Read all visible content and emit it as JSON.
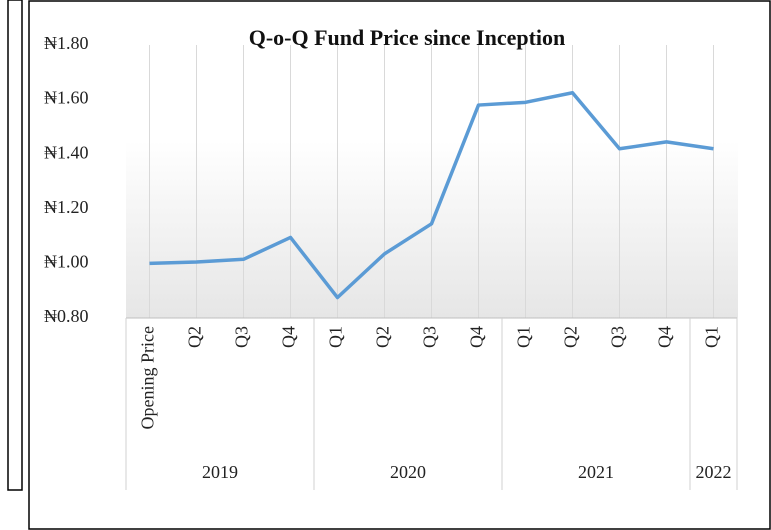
{
  "chart_data": {
    "type": "line",
    "title": "Q-o-Q Fund Price since Inception",
    "categories": [
      "Opening Price",
      "Q2",
      "Q3",
      "Q4",
      "Q1",
      "Q2",
      "Q3",
      "Q4",
      "Q1",
      "Q2",
      "Q3",
      "Q4",
      "Q1"
    ],
    "groups": [
      {
        "label": "2019",
        "count": 4
      },
      {
        "label": "2020",
        "count": 4
      },
      {
        "label": "2021",
        "count": 4
      },
      {
        "label": "2022",
        "count": 1
      }
    ],
    "series": [
      {
        "name": "Fund Price",
        "color": "#5b9bd5",
        "values": [
          1.0,
          1.005,
          1.015,
          1.095,
          0.875,
          1.035,
          1.145,
          1.58,
          1.59,
          1.625,
          1.42,
          1.445,
          1.42
        ]
      }
    ],
    "ylim": [
      0.8,
      1.8
    ],
    "yticks": [
      {
        "value": 0.8,
        "label": "₦0.80"
      },
      {
        "value": 1.0,
        "label": "₦1.00"
      },
      {
        "value": 1.2,
        "label": "₦1.20"
      },
      {
        "value": 1.4,
        "label": "₦1.40"
      },
      {
        "value": 1.6,
        "label": "₦1.60"
      },
      {
        "value": 1.8,
        "label": "₦1.80"
      }
    ],
    "grid": true
  }
}
